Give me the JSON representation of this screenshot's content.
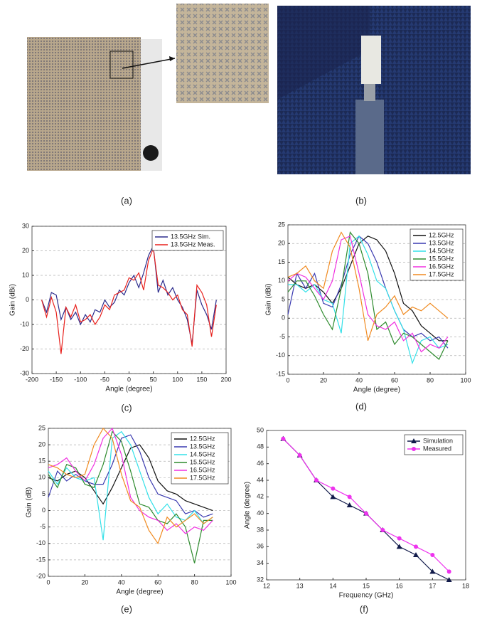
{
  "photos": [
    {
      "caption": "(a)"
    },
    {
      "caption": "(b)"
    }
  ],
  "chart_data": [
    {
      "type": "line",
      "caption": "(c)",
      "xlabel": "Angle (degree)",
      "ylabel": "Gain (dBi)",
      "x": [
        -180,
        -170,
        -160,
        -150,
        -140,
        -130,
        -120,
        -110,
        -100,
        -90,
        -80,
        -70,
        -60,
        -50,
        -40,
        -30,
        -20,
        -10,
        0,
        10,
        20,
        30,
        40,
        50,
        60,
        70,
        80,
        90,
        100,
        110,
        120,
        130,
        140,
        150,
        160,
        170,
        180
      ],
      "series": [
        {
          "name": "13.5GHz Sim.",
          "color": "#2b2b8c",
          "values": [
            0,
            -5,
            3,
            2,
            -8,
            -3,
            -8,
            -5,
            -10,
            -6,
            -9,
            -4,
            -5,
            0,
            -3,
            -1,
            4,
            2,
            7,
            10,
            5,
            11,
            18,
            22,
            3,
            8,
            2,
            5,
            0,
            -3,
            -8,
            -18,
            4,
            -2,
            -6,
            -12,
            0
          ]
        },
        {
          "name": "13.5GHz Meas.",
          "color": "#e8201c",
          "values": [
            0,
            -7,
            1,
            -5,
            -22,
            -3,
            -7,
            -2,
            -9,
            -8,
            -6,
            -10,
            -7,
            -2,
            -4,
            2,
            3,
            4,
            9,
            8,
            11,
            4,
            16,
            21,
            6,
            5,
            3,
            0,
            2,
            -4,
            -6,
            -19,
            6,
            3,
            -2,
            -15,
            -2
          ]
        }
      ],
      "xlim": [
        -200,
        200
      ],
      "xticks": [
        -200,
        -150,
        -100,
        -50,
        0,
        50,
        100,
        150,
        200
      ],
      "ylim": [
        -30,
        30
      ],
      "yticks": [
        -30,
        -20,
        -10,
        0,
        10,
        20,
        30
      ],
      "grid": true,
      "legend": "upper right",
      "markers": false
    },
    {
      "type": "line",
      "caption": "(d)",
      "xlabel": "Angle (degree)",
      "ylabel": "Gain (dBi)",
      "x": [
        0,
        5,
        10,
        15,
        20,
        25,
        30,
        35,
        40,
        45,
        50,
        55,
        60,
        65,
        70,
        75,
        80,
        85,
        90
      ],
      "series": [
        {
          "name": "12.5GHz",
          "color": "#111111",
          "values": [
            11,
            9,
            8,
            9,
            7,
            4,
            8,
            14,
            20,
            22,
            21,
            18,
            12,
            4,
            2,
            -2,
            -4,
            -6,
            -6
          ]
        },
        {
          "name": "13.5GHz",
          "color": "#3a3ab0",
          "values": [
            1,
            12,
            8,
            12,
            4,
            3,
            9,
            17,
            22,
            20,
            15,
            8,
            2,
            -3,
            -5,
            -4,
            -6,
            -5,
            -8
          ]
        },
        {
          "name": "14.5GHz",
          "color": "#33e0e8",
          "values": [
            9,
            9,
            7,
            9,
            5,
            4,
            -4,
            20,
            22,
            17,
            10,
            8,
            2,
            -3,
            -12,
            -6,
            -5,
            -8,
            -7
          ]
        },
        {
          "name": "15.5GHz",
          "color": "#2e8b2e",
          "values": [
            7,
            10,
            10,
            6,
            1,
            -3,
            8,
            23,
            20,
            12,
            -3,
            -1,
            -7,
            -4,
            -5,
            -7,
            -9,
            -11,
            -6
          ]
        },
        {
          "name": "16.5GHz",
          "color": "#f030e0",
          "values": [
            10,
            12,
            11,
            8,
            5,
            10,
            21,
            22,
            12,
            1,
            -2,
            -3,
            -1,
            -6,
            -4,
            -9,
            -7,
            -8,
            -5
          ]
        },
        {
          "name": "17.5GHz",
          "color": "#f08a20",
          "values": [
            11,
            12,
            14,
            10,
            8,
            18,
            23,
            19,
            8,
            -6,
            1,
            3,
            6,
            1,
            3,
            2,
            4,
            2,
            0
          ]
        }
      ],
      "xlim": [
        0,
        100
      ],
      "xticks": [
        0,
        20,
        40,
        60,
        80,
        100
      ],
      "ylim": [
        -15,
        25
      ],
      "yticks": [
        -15,
        -10,
        -5,
        0,
        5,
        10,
        15,
        20,
        25
      ],
      "grid": true,
      "legend": "upper right",
      "markers": false
    },
    {
      "type": "line",
      "caption": "(e)",
      "xlabel": "Angle (degree)",
      "ylabel": "Gain (dB)",
      "x": [
        0,
        5,
        10,
        15,
        20,
        25,
        30,
        35,
        40,
        45,
        50,
        55,
        60,
        65,
        70,
        75,
        80,
        85,
        90
      ],
      "series": [
        {
          "name": "12.5GHz",
          "color": "#111111",
          "values": [
            10,
            9,
            11,
            12,
            10,
            6,
            2,
            7,
            13,
            19,
            20,
            16,
            9,
            6,
            5,
            3,
            2,
            1,
            0
          ]
        },
        {
          "name": "13.5GHz",
          "color": "#3a3ab0",
          "values": [
            4,
            12,
            9,
            11,
            9,
            8,
            8,
            14,
            22,
            23,
            18,
            10,
            5,
            4,
            3,
            -1,
            0,
            -2,
            -1
          ]
        },
        {
          "name": "14.5GHz",
          "color": "#33e0e8",
          "values": [
            12,
            8,
            13,
            10,
            9,
            10,
            -9,
            22,
            24,
            20,
            12,
            4,
            -1,
            2,
            -2,
            -3,
            0,
            -4,
            -2
          ]
        },
        {
          "name": "15.5GHz",
          "color": "#2e8b2e",
          "values": [
            11,
            7,
            14,
            13,
            8,
            7,
            14,
            24,
            21,
            12,
            2,
            1,
            -3,
            -4,
            -1,
            -5,
            -16,
            -3,
            -3
          ]
        },
        {
          "name": "16.5GHz",
          "color": "#f030e0",
          "values": [
            13,
            14,
            16,
            12,
            9,
            14,
            22,
            25,
            17,
            4,
            0,
            -2,
            -3,
            -6,
            -4,
            -7,
            -5,
            -6,
            -3
          ]
        },
        {
          "name": "17.5GHz",
          "color": "#f08a20",
          "values": [
            14,
            13,
            11,
            10,
            11,
            20,
            25,
            22,
            11,
            3,
            1,
            -6,
            -10,
            -2,
            -5,
            -3,
            -1,
            -4,
            -2
          ]
        }
      ],
      "xlim": [
        0,
        100
      ],
      "xticks": [
        0,
        20,
        40,
        60,
        80,
        100
      ],
      "ylim": [
        -20,
        25
      ],
      "yticks": [
        -20,
        -15,
        -10,
        -5,
        0,
        5,
        10,
        15,
        20,
        25
      ],
      "grid": true,
      "legend": "upper right",
      "markers": false
    },
    {
      "type": "line",
      "caption": "(f)",
      "xlabel": "Frequency (GHz)",
      "ylabel": "Angle (degree)",
      "x": [
        12.5,
        13,
        13.5,
        14,
        14.5,
        15,
        15.5,
        16,
        16.5,
        17,
        17.5
      ],
      "series": [
        {
          "name": "Simulation",
          "color": "#111a4a",
          "marker": "triangle",
          "values": [
            49,
            47,
            44,
            42,
            41,
            40,
            38,
            36,
            35,
            33,
            32
          ]
        },
        {
          "name": "Measured",
          "color": "#ee33ee",
          "marker": "circle",
          "values": [
            49,
            47,
            44,
            43,
            42,
            40,
            38,
            37,
            36,
            35,
            33
          ]
        }
      ],
      "xlim": [
        12,
        18
      ],
      "xticks": [
        12,
        13,
        14,
        15,
        16,
        17,
        18
      ],
      "ylim": [
        32,
        50
      ],
      "yticks": [
        32,
        34,
        36,
        38,
        40,
        42,
        44,
        46,
        48,
        50
      ],
      "grid": false,
      "legend": "upper right",
      "markers": true
    }
  ]
}
